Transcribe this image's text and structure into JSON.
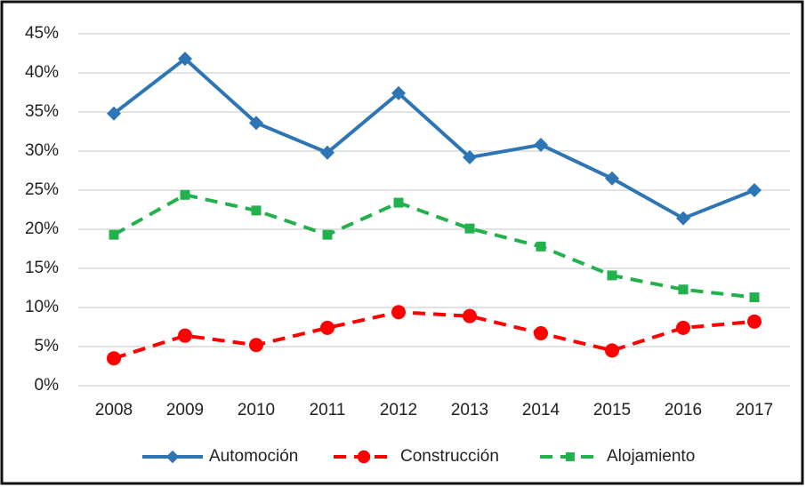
{
  "chart_data": {
    "type": "line",
    "categories": [
      "2008",
      "2009",
      "2010",
      "2011",
      "2012",
      "2013",
      "2014",
      "2015",
      "2016",
      "2017"
    ],
    "series": [
      {
        "name": "Automoción",
        "color": "#2e75b6",
        "marker": "diamond",
        "dash": false,
        "values": [
          34.8,
          41.8,
          33.6,
          29.8,
          37.4,
          29.2,
          30.8,
          26.5,
          21.4,
          25.0
        ]
      },
      {
        "name": "Construcción",
        "color": "#ff0000",
        "marker": "circle",
        "dash": true,
        "values": [
          3.5,
          6.4,
          5.2,
          7.4,
          9.4,
          8.9,
          6.7,
          4.5,
          7.4,
          8.2
        ]
      },
      {
        "name": "Alojamiento",
        "color": "#22b14c",
        "marker": "square",
        "dash": true,
        "values": [
          19.3,
          24.4,
          22.4,
          19.3,
          23.4,
          20.1,
          17.8,
          14.1,
          12.3,
          11.3
        ]
      }
    ],
    "ylim": [
      0,
      45
    ],
    "yticks": [
      {
        "value": 0,
        "label": "0%"
      },
      {
        "value": 5,
        "label": "5%"
      },
      {
        "value": 10,
        "label": "10%"
      },
      {
        "value": 15,
        "label": "15%"
      },
      {
        "value": 20,
        "label": "20%"
      },
      {
        "value": 25,
        "label": "25%"
      },
      {
        "value": 30,
        "label": "30%"
      },
      {
        "value": 35,
        "label": "35%"
      },
      {
        "value": 40,
        "label": "40%"
      },
      {
        "value": 45,
        "label": "45%"
      }
    ],
    "grid": true,
    "legend": "bottom"
  }
}
